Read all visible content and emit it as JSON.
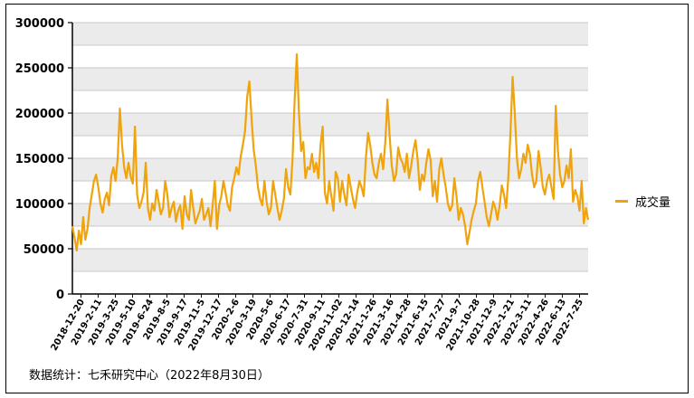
{
  "chart_data": {
    "type": "line",
    "title": "",
    "xlabel": "",
    "ylabel": "",
    "ylim": [
      0,
      300000
    ],
    "yticks": [
      0,
      50000,
      100000,
      150000,
      200000,
      250000,
      300000
    ],
    "grid": true,
    "legend_position": "right",
    "x_tick_labels": [
      "2018-12-20",
      "2019-2-11",
      "2019-3-25",
      "2019-5-10",
      "2019-6-24",
      "2019-8-5",
      "2019-9-17",
      "2019-11-5",
      "2019-12-17",
      "2020-2-6",
      "2020-3-19",
      "2020-5-6",
      "2020-6-17",
      "2020-7-31",
      "2020-9-11",
      "2020-11-02",
      "2020-12-14",
      "2021-1-26",
      "2021-3-16",
      "2021-4-28",
      "2021-6-15",
      "2021-7-27",
      "2021-9-7",
      "2021-10-28",
      "2021-12-9",
      "2022-1-21",
      "2022-3-11",
      "2022-4-26",
      "2022-6-13",
      "2022-7-25"
    ],
    "series": [
      {
        "name": "成交量",
        "color": "#f0a30a",
        "values": [
          75000,
          62000,
          48000,
          70000,
          55000,
          85000,
          60000,
          72000,
          95000,
          110000,
          125000,
          132000,
          118000,
          100000,
          90000,
          105000,
          112000,
          98000,
          130000,
          140000,
          125000,
          150000,
          205000,
          165000,
          140000,
          128000,
          145000,
          130000,
          122000,
          185000,
          110000,
          95000,
          102000,
          112000,
          145000,
          95000,
          82000,
          100000,
          92000,
          115000,
          102000,
          88000,
          95000,
          125000,
          110000,
          85000,
          95000,
          102000,
          80000,
          92000,
          98000,
          72000,
          108000,
          88000,
          82000,
          115000,
          95000,
          78000,
          85000,
          92000,
          105000,
          82000,
          88000,
          95000,
          75000,
          98000,
          125000,
          72000,
          98000,
          108000,
          125000,
          112000,
          98000,
          92000,
          118000,
          128000,
          140000,
          132000,
          152000,
          165000,
          180000,
          218000,
          235000,
          195000,
          160000,
          142000,
          118000,
          105000,
          98000,
          125000,
          102000,
          88000,
          95000,
          125000,
          110000,
          95000,
          82000,
          92000,
          105000,
          138000,
          118000,
          110000,
          148000,
          215000,
          265000,
          200000,
          158000,
          168000,
          128000,
          140000,
          138000,
          155000,
          135000,
          145000,
          128000,
          165000,
          185000,
          112000,
          100000,
          125000,
          108000,
          92000,
          135000,
          128000,
          102000,
          125000,
          110000,
          98000,
          132000,
          118000,
          105000,
          95000,
          112000,
          125000,
          118000,
          108000,
          150000,
          178000,
          165000,
          145000,
          132000,
          128000,
          145000,
          155000,
          138000,
          168000,
          215000,
          175000,
          142000,
          125000,
          132000,
          162000,
          150000,
          145000,
          135000,
          155000,
          128000,
          142000,
          158000,
          170000,
          148000,
          115000,
          132000,
          125000,
          145000,
          160000,
          148000,
          108000,
          125000,
          102000,
          138000,
          150000,
          132000,
          118000,
          100000,
          92000,
          98000,
          128000,
          108000,
          82000,
          95000,
          88000,
          75000,
          55000,
          68000,
          82000,
          92000,
          100000,
          125000,
          135000,
          118000,
          102000,
          85000,
          75000,
          88000,
          102000,
          95000,
          82000,
          98000,
          120000,
          110000,
          95000,
          128000,
          178000,
          240000,
          200000,
          150000,
          128000,
          138000,
          155000,
          145000,
          165000,
          155000,
          132000,
          118000,
          125000,
          158000,
          140000,
          118000,
          110000,
          125000,
          132000,
          118000,
          105000,
          208000,
          158000,
          132000,
          118000,
          125000,
          142000,
          128000,
          160000,
          102000,
          115000,
          108000,
          92000,
          125000,
          78000,
          95000,
          82000
        ]
      }
    ]
  },
  "legend": {
    "label": "成交量"
  },
  "source": "数据统计：七禾研究中心（2022年8月30日）"
}
